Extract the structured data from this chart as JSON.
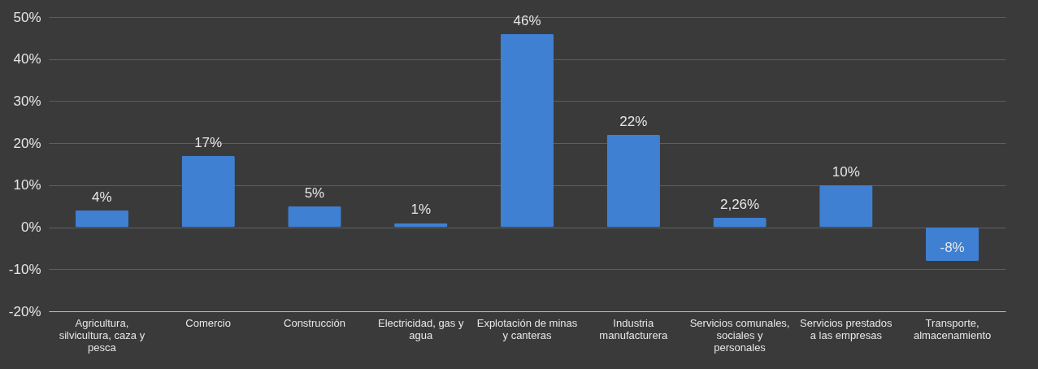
{
  "chart_data": {
    "type": "bar",
    "categories": [
      "Agricultura, silvicultura, caza y pesca",
      "Comercio",
      "Construcción",
      "Electricidad, gas y agua",
      "Explotación de minas y canteras",
      "Industria manufacturera",
      "Servicios comunales, sociales y personales",
      "Servicios prestados a las empresas",
      "Transporte, almacenamiento"
    ],
    "values": [
      4,
      17,
      5,
      1,
      46,
      22,
      2.26,
      10,
      -8
    ],
    "value_labels": [
      "4%",
      "17%",
      "5%",
      "1%",
      "46%",
      "22%",
      "2,26%",
      "10%",
      "-8%"
    ],
    "color": "#3f80d2",
    "ylim": [
      -20,
      50
    ],
    "yticks": [
      {
        "value": -20,
        "label": "-20%"
      },
      {
        "value": -10,
        "label": "-10%"
      },
      {
        "value": 0,
        "label": "0%"
      },
      {
        "value": 10,
        "label": "10%"
      },
      {
        "value": 20,
        "label": "20%"
      },
      {
        "value": 30,
        "label": "30%"
      },
      {
        "value": 40,
        "label": "40%"
      },
      {
        "value": 50,
        "label": "50%"
      }
    ],
    "grid": "y"
  }
}
